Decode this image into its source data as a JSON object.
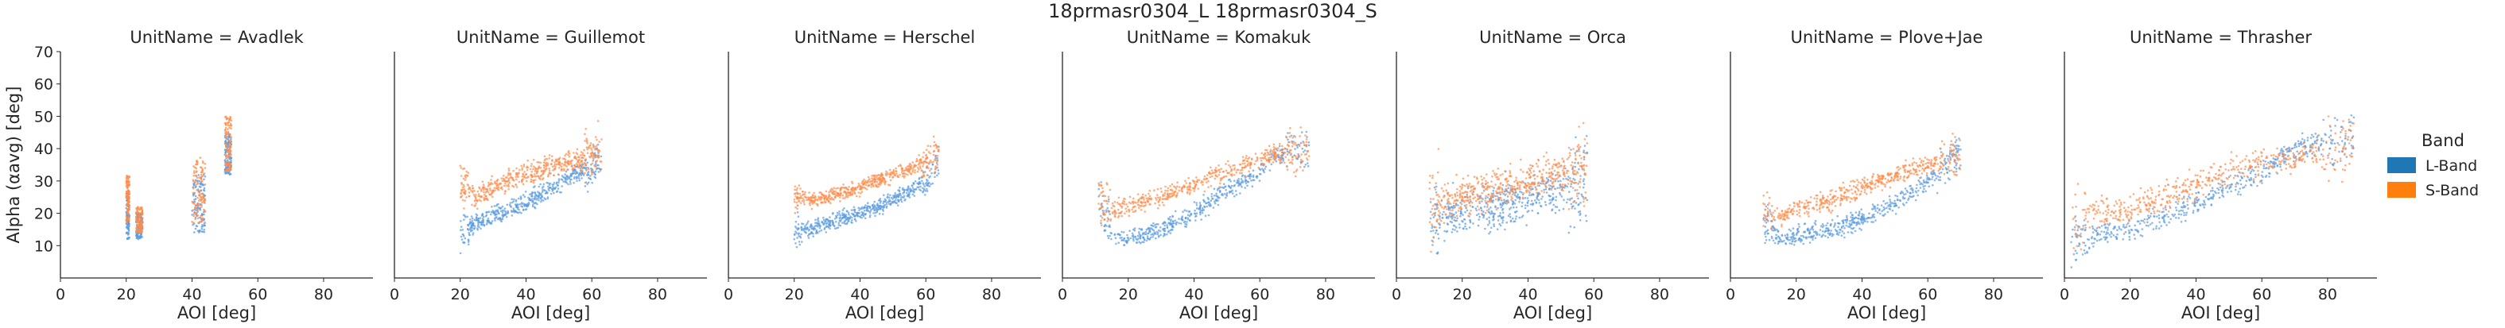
{
  "figure": {
    "suptitle": "18prmasr0304_L 18prmasr0304_S",
    "legend_title": "Band",
    "legend_items": [
      {
        "label": "L-Band",
        "color": "#1f77b4"
      },
      {
        "label": "S-Band",
        "color": "#ff7f0e"
      }
    ],
    "point_colors": {
      "L-Band": "#5b9be0",
      "S-Band": "#ff8c4a"
    }
  },
  "chart_data": [
    {
      "type": "scatter",
      "title": "UnitName = Avadlek",
      "xlabel": "AOI [deg]",
      "ylabel": "Alpha (αavg) [deg]",
      "xlim": [
        0,
        95
      ],
      "ylim": [
        0,
        70
      ],
      "xticks": [
        0,
        20,
        40,
        60,
        80
      ],
      "yticks": [
        10,
        20,
        30,
        40,
        50,
        60,
        70
      ],
      "series": [
        {
          "name": "L-Band",
          "x_range": [
            20,
            53
          ],
          "clusters": [
            {
              "x": [
                20,
                21
              ],
              "y": [
                12,
                27
              ]
            },
            {
              "x": [
                23,
                25
              ],
              "y": [
                12,
                20
              ]
            },
            {
              "x": [
                40,
                44
              ],
              "y": [
                14,
                32
              ]
            },
            {
              "x": [
                50,
                52
              ],
              "y": [
                32,
                45
              ]
            }
          ]
        },
        {
          "name": "S-Band",
          "x_range": [
            20,
            53
          ],
          "clusters": [
            {
              "x": [
                20,
                21
              ],
              "y": [
                17,
                32
              ]
            },
            {
              "x": [
                23,
                25
              ],
              "y": [
                14,
                22
              ]
            },
            {
              "x": [
                40,
                44
              ],
              "y": [
                17,
                38
              ]
            },
            {
              "x": [
                50,
                52
              ],
              "y": [
                33,
                50
              ]
            }
          ]
        }
      ]
    },
    {
      "type": "scatter",
      "title": "UnitName = Guillemot",
      "xlabel": "AOI [deg]",
      "ylabel": "",
      "xlim": [
        0,
        95
      ],
      "ylim": [
        0,
        70
      ],
      "xticks": [
        0,
        20,
        40,
        60,
        80
      ],
      "series": [
        {
          "name": "L-Band",
          "x": [
            20,
            25,
            30,
            40,
            50,
            55,
            60,
            63
          ],
          "y": [
            13,
            17,
            19,
            23,
            29,
            32,
            34,
            37
          ],
          "spread": 2.5
        },
        {
          "name": "S-Band",
          "x": [
            20,
            25,
            30,
            40,
            50,
            55,
            60,
            63
          ],
          "y": [
            30,
            25,
            28,
            32,
            35,
            37,
            38,
            40
          ],
          "spread": 3.0
        }
      ]
    },
    {
      "type": "scatter",
      "title": "UnitName = Herschel",
      "xlabel": "AOI [deg]",
      "ylabel": "",
      "xlim": [
        0,
        95
      ],
      "ylim": [
        0,
        70
      ],
      "xticks": [
        0,
        20,
        40,
        60,
        80
      ],
      "series": [
        {
          "name": "L-Band",
          "x": [
            20,
            25,
            30,
            40,
            50,
            60,
            64
          ],
          "y": [
            14,
            15,
            17,
            20,
            24,
            30,
            36
          ],
          "spread": 2.0
        },
        {
          "name": "S-Band",
          "x": [
            20,
            25,
            30,
            40,
            50,
            60,
            64
          ],
          "y": [
            25,
            24,
            25,
            28,
            32,
            36,
            39
          ],
          "spread": 2.0
        }
      ]
    },
    {
      "type": "scatter",
      "title": "UnitName = Komakuk",
      "xlabel": "AOI [deg]",
      "ylabel": "",
      "xlim": [
        0,
        95
      ],
      "ylim": [
        0,
        70
      ],
      "xticks": [
        0,
        20,
        40,
        60,
        80
      ],
      "series": [
        {
          "name": "L-Band",
          "x": [
            11,
            16,
            20,
            30,
            40,
            50,
            60,
            65,
            70,
            75
          ],
          "y": [
            23,
            12,
            12,
            15,
            20,
            27,
            33,
            38,
            40,
            39
          ],
          "spread": 2.5
        },
        {
          "name": "S-Band",
          "x": [
            11,
            16,
            20,
            30,
            40,
            50,
            60,
            65,
            70,
            75
          ],
          "y": [
            25,
            21,
            22,
            25,
            29,
            33,
            37,
            38,
            38,
            40
          ],
          "spread": 2.5
        }
      ]
    },
    {
      "type": "scatter",
      "title": "UnitName = Orca",
      "xlabel": "AOI [deg]",
      "ylabel": "",
      "xlim": [
        0,
        95
      ],
      "ylim": [
        0,
        70
      ],
      "xticks": [
        0,
        20,
        40,
        60,
        80
      ],
      "series": [
        {
          "name": "L-Band",
          "x": [
            10,
            20,
            30,
            40,
            50,
            58
          ],
          "y": [
            18,
            20,
            22,
            25,
            28,
            31
          ],
          "spread": 6.0
        },
        {
          "name": "S-Band",
          "x": [
            10,
            20,
            30,
            40,
            50,
            58
          ],
          "y": [
            22,
            25,
            28,
            30,
            32,
            36
          ],
          "spread": 5.0
        }
      ]
    },
    {
      "type": "scatter",
      "title": "UnitName = Plove+Jae",
      "xlabel": "AOI [deg]",
      "ylabel": "",
      "xlim": [
        0,
        95
      ],
      "ylim": [
        0,
        70
      ],
      "xticks": [
        0,
        20,
        40,
        60,
        80
      ],
      "series": [
        {
          "name": "L-Band",
          "x": [
            10,
            15,
            20,
            30,
            40,
            50,
            60,
            65,
            70
          ],
          "y": [
            18,
            12,
            13,
            15,
            18,
            23,
            30,
            35,
            38
          ],
          "spread": 2.5
        },
        {
          "name": "S-Band",
          "x": [
            10,
            15,
            20,
            30,
            40,
            50,
            60,
            65,
            70
          ],
          "y": [
            22,
            19,
            21,
            24,
            28,
            32,
            35,
            37,
            38
          ],
          "spread": 2.5
        }
      ]
    },
    {
      "type": "scatter",
      "title": "UnitName = Thrasher",
      "xlabel": "AOI [deg]",
      "ylabel": "",
      "xlim": [
        0,
        95
      ],
      "ylim": [
        0,
        70
      ],
      "xticks": [
        0,
        20,
        40,
        60,
        80
      ],
      "series": [
        {
          "name": "L-Band",
          "x": [
            2,
            10,
            20,
            30,
            40,
            50,
            60,
            70,
            80,
            88
          ],
          "y": [
            11,
            13,
            15,
            19,
            23,
            28,
            33,
            40,
            42,
            43
          ],
          "spread": 3.0
        },
        {
          "name": "S-Band",
          "x": [
            2,
            10,
            20,
            30,
            40,
            50,
            60,
            70,
            80,
            88
          ],
          "y": [
            18,
            20,
            21,
            25,
            29,
            33,
            36,
            37,
            40,
            42
          ],
          "spread": 4.0
        }
      ]
    }
  ]
}
